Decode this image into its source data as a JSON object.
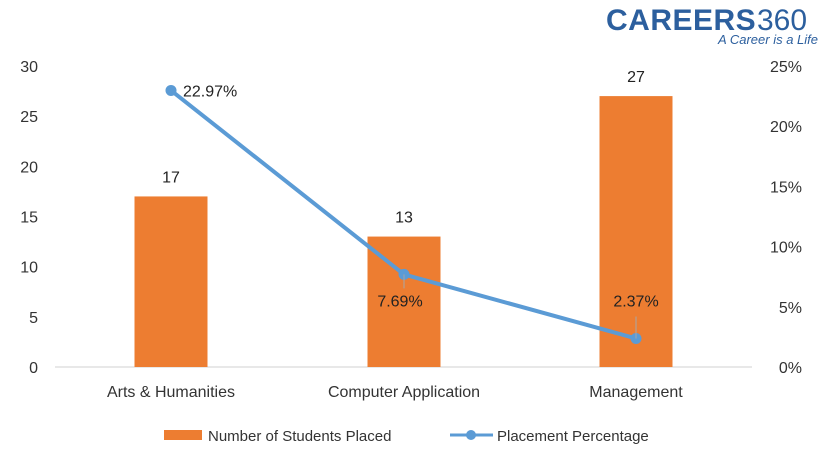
{
  "logo": {
    "brand": "CAREERS",
    "number": "360",
    "tagline": "A Career is a Life"
  },
  "chart_data": {
    "type": "bar",
    "categories": [
      "Arts & Humanities",
      "Computer Application",
      "Management"
    ],
    "series": [
      {
        "name": "Number of Students Placed",
        "type": "bar",
        "axis": "left",
        "values": [
          17,
          13,
          27
        ],
        "labels": [
          "17",
          "13",
          "27"
        ],
        "color": "#ed7d31"
      },
      {
        "name": "Placement Percentage",
        "type": "line",
        "axis": "right",
        "values": [
          22.97,
          7.69,
          2.37
        ],
        "labels": [
          "22.97%",
          "7.69%",
          "2.37%"
        ],
        "color": "#5b9bd5"
      }
    ],
    "y_left": {
      "min": 0,
      "max": 30,
      "ticks": [
        "0",
        "5",
        "10",
        "15",
        "20",
        "25",
        "30"
      ]
    },
    "y_right": {
      "min": 0,
      "max": 25,
      "ticks": [
        "0%",
        "5%",
        "10%",
        "15%",
        "20%",
        "25%"
      ]
    },
    "legend_position": "bottom",
    "grid": false
  }
}
